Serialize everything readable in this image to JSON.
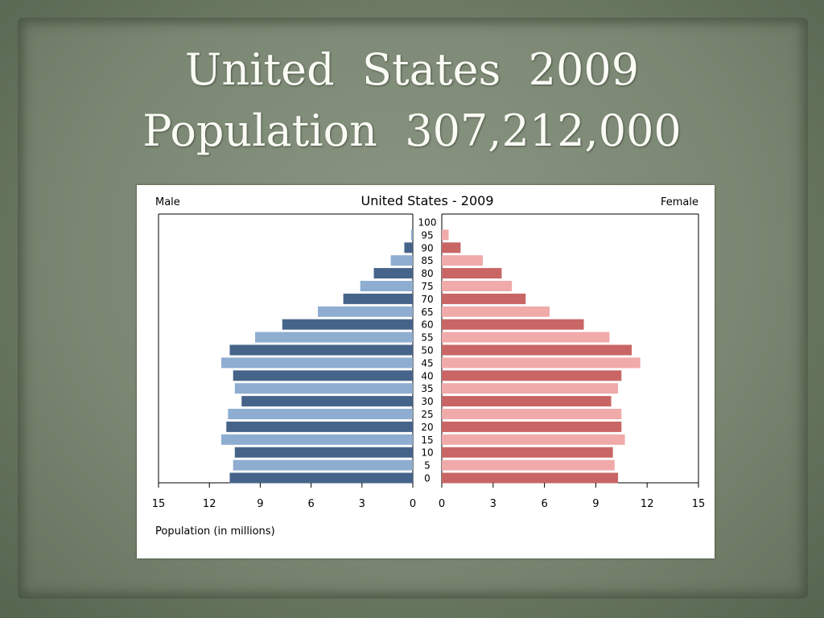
{
  "slide": {
    "title_line1": "United  States  2009",
    "title_line2": "Population  307,212,000"
  },
  "chart_data": {
    "type": "bar",
    "title": "United States - 2009",
    "left_label": "Male",
    "right_label": "Female",
    "xlabel": "Population (in millions)",
    "x_ticks": [
      "15",
      "12",
      "9",
      "6",
      "3",
      "0",
      "0",
      "3",
      "6",
      "9",
      "12",
      "15"
    ],
    "xlim": [
      0,
      15
    ],
    "categories": [
      "0",
      "5",
      "10",
      "15",
      "20",
      "25",
      "30",
      "35",
      "40",
      "45",
      "50",
      "55",
      "60",
      "65",
      "70",
      "75",
      "80",
      "85",
      "90",
      "95",
      "100"
    ],
    "series": [
      {
        "name": "Male",
        "values": [
          10.8,
          10.6,
          10.5,
          11.3,
          11.0,
          10.9,
          10.1,
          10.5,
          10.6,
          11.3,
          10.8,
          9.3,
          7.7,
          5.6,
          4.1,
          3.1,
          2.3,
          1.3,
          0.5,
          0.1,
          0.0
        ]
      },
      {
        "name": "Female",
        "values": [
          10.3,
          10.1,
          10.0,
          10.7,
          10.5,
          10.5,
          9.9,
          10.3,
          10.5,
          11.6,
          11.1,
          9.8,
          8.3,
          6.3,
          4.9,
          4.1,
          3.5,
          2.4,
          1.1,
          0.4,
          0.0
        ]
      }
    ],
    "colors": {
      "male_dark": "#46648a",
      "male_light": "#8eadd1",
      "female_dark": "#c96565",
      "female_light": "#f0aaaa",
      "axis": "#000000"
    }
  }
}
